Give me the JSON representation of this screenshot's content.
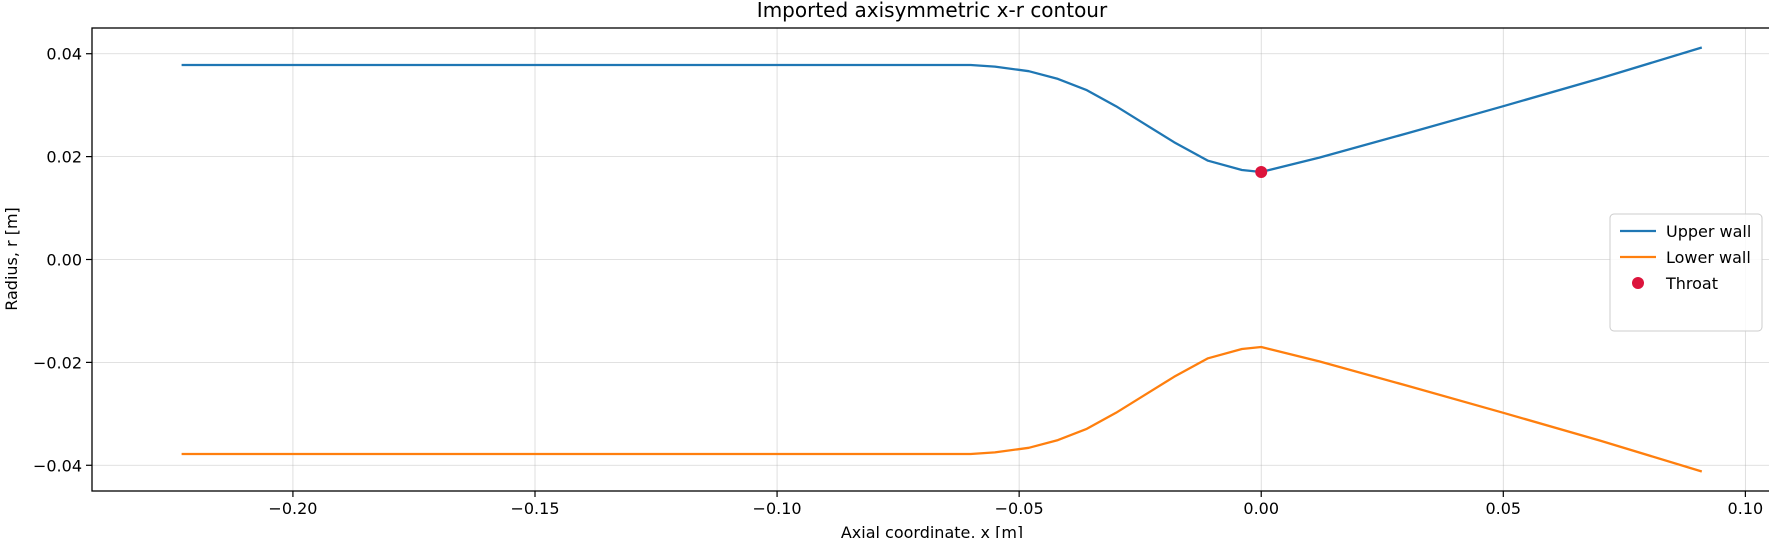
{
  "chart_data": {
    "type": "line",
    "title": "Imported axisymmetric x-r contour",
    "xlabel": "Axial coordinate, x [m]",
    "ylabel": "Radius, r [m]",
    "xlim": [
      -0.2415,
      0.1055
    ],
    "ylim": [
      -0.045,
      0.045
    ],
    "x_ticks": [
      -0.2,
      -0.15,
      -0.1,
      -0.05,
      0.0,
      0.05,
      0.1
    ],
    "x_tick_labels": [
      "−0.20",
      "−0.15",
      "−0.10",
      "−0.05",
      "0.00",
      "0.05",
      "0.10"
    ],
    "y_ticks": [
      0.04,
      0.02,
      0.0,
      -0.02,
      -0.04
    ],
    "y_tick_labels": [
      "0.04",
      "0.02",
      "0.00",
      "−0.02",
      "−0.04"
    ],
    "grid": true,
    "legend_position": "center-right",
    "series": [
      {
        "name": "Upper wall",
        "color": "#1f77b4",
        "x": [
          -0.223,
          -0.06,
          -0.055,
          -0.048,
          -0.042,
          -0.036,
          -0.03,
          -0.024,
          -0.018,
          -0.011,
          -0.004,
          0.0,
          0.012,
          0.03,
          0.05,
          0.07,
          0.091
        ],
        "y": [
          0.0378,
          0.0378,
          0.0375,
          0.0366,
          0.0351,
          0.0329,
          0.0298,
          0.0263,
          0.0228,
          0.0192,
          0.0174,
          0.017,
          0.0198,
          0.0245,
          0.0298,
          0.0352,
          0.0412
        ]
      },
      {
        "name": "Lower wall",
        "color": "#ff7f0e",
        "x": [
          -0.223,
          -0.06,
          -0.055,
          -0.048,
          -0.042,
          -0.036,
          -0.03,
          -0.024,
          -0.018,
          -0.011,
          -0.004,
          0.0,
          0.012,
          0.03,
          0.05,
          0.07,
          0.091
        ],
        "y": [
          -0.0378,
          -0.0378,
          -0.0375,
          -0.0366,
          -0.0351,
          -0.0329,
          -0.0298,
          -0.0263,
          -0.0228,
          -0.0192,
          -0.0174,
          -0.017,
          -0.0198,
          -0.0245,
          -0.0298,
          -0.0352,
          -0.0412
        ]
      }
    ],
    "points": [
      {
        "name": "Throat",
        "color": "#dc143c",
        "x": 0.0,
        "y": 0.017
      }
    ]
  }
}
